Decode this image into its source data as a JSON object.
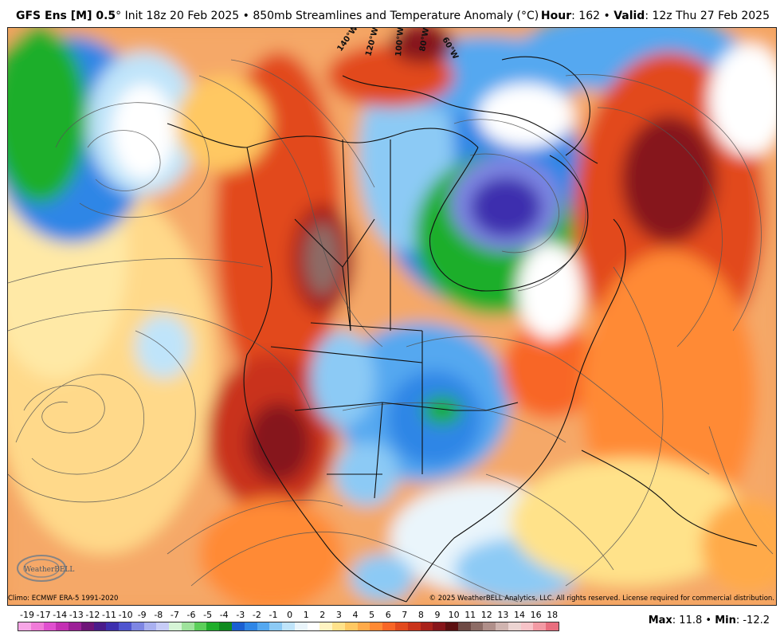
{
  "header": {
    "model_bold": "GFS Ens [M] 0.5",
    "degree": "°",
    "init_text": " Init 18z 20 Feb 2025 • 850mb Streamlines and Temperature Anomaly (°C)",
    "hour_label": "Hour",
    "hour_value": ": 162 • ",
    "valid_label": "Valid",
    "valid_value": ": 12z Thu 27 Feb 2025"
  },
  "map": {
    "longitude_labels": [
      "140°W",
      "120°W",
      "100°W",
      "80°W",
      "60°W"
    ],
    "logo_text": "WeatherBELL"
  },
  "footer": {
    "climo": "Climo: ECMWF ERA-5 1991-2020",
    "copyright": "© 2025 WeatherBELL Analytics, LLC. All rights reserved. License required for commercial distribution."
  },
  "legend": {
    "labels": [
      "-19",
      "-17",
      "-14",
      "-13",
      "-12",
      "-11",
      "-10",
      "-9",
      "-8",
      "-7",
      "-6",
      "-5",
      "-4",
      "-3",
      "-2",
      "-1",
      "0",
      "1",
      "2",
      "3",
      "4",
      "5",
      "6",
      "7",
      "8",
      "9",
      "10",
      "11",
      "12",
      "13",
      "14",
      "16",
      "18"
    ],
    "colors": [
      "#f7a6e6",
      "#f07bd8",
      "#e04fcf",
      "#c42fb3",
      "#9c1f97",
      "#6e1478",
      "#4a1b8a",
      "#3d2fae",
      "#4f55cf",
      "#7e86e3",
      "#a9b0f0",
      "#c7ccf7",
      "#d6f5d6",
      "#9fe39c",
      "#5ccf5a",
      "#1fae2b",
      "#0f8a1e",
      "#1b5fd1",
      "#2f86e6",
      "#55a8f0",
      "#8ccaf5",
      "#bfe4fa",
      "#eaf5fb",
      "#ffffff",
      "#fff4c2",
      "#ffe28a",
      "#ffc862",
      "#ffaa4a",
      "#ff8a34",
      "#f86626",
      "#e24a1d",
      "#c9331a",
      "#a8221a",
      "#86161a",
      "#5c1011",
      "#6e4a45",
      "#8d6c66",
      "#b08f8a",
      "#d0b4b0",
      "#ecd4d2",
      "#f7c3c8",
      "#f39aa4",
      "#e86e7e"
    ],
    "max_label": "Max",
    "max_value": ": 11.8 • ",
    "min_label": "Min",
    "min_value": ": -12.2"
  }
}
